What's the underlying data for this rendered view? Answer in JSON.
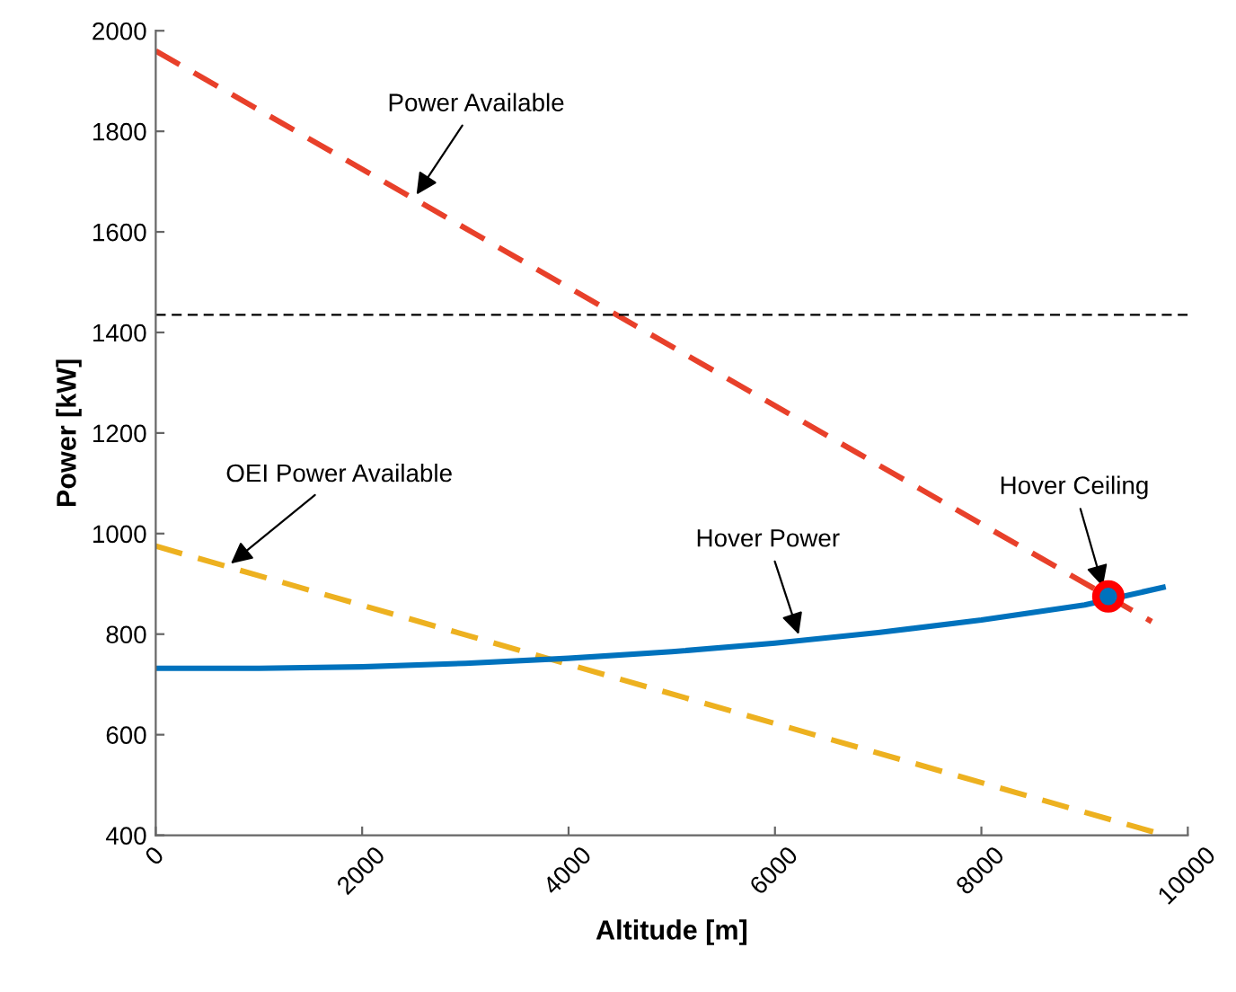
{
  "chart_data": {
    "type": "line",
    "xlabel": "Altitude [m]",
    "ylabel": "Power [kW]",
    "xlim": [
      0,
      10000
    ],
    "ylim": [
      400,
      2000
    ],
    "xticks": [
      0,
      2000,
      4000,
      6000,
      8000,
      10000
    ],
    "yticks": [
      400,
      600,
      800,
      1000,
      1200,
      1400,
      1600,
      1800,
      2000
    ],
    "grid": false,
    "legend": false,
    "series": [
      {
        "color": "#e8402a",
        "line_style": "dashed",
        "x": [
          0,
          9650
        ],
        "values": [
          1960,
          825
        ]
      },
      {
        "color": "#edb120",
        "line_style": "dashed",
        "x": [
          0,
          9780
        ],
        "values": [
          975,
          400
        ]
      },
      {
        "color": "#0072bd",
        "line_style": "solid",
        "x": [
          0,
          1000,
          2000,
          3000,
          4000,
          5000,
          6000,
          7000,
          8000,
          9000,
          9760
        ],
        "values": [
          732,
          732,
          735,
          742,
          752,
          765,
          782,
          803,
          828,
          858,
          893
        ]
      },
      {
        "type": "scatter",
        "marker": "circle",
        "color": "#ff0000",
        "x": [
          9230
        ],
        "values": [
          875
        ]
      }
    ],
    "ref_lines": [
      {
        "axis": "y",
        "value": 1435,
        "color": "#000000",
        "line_style": "dashed"
      }
    ],
    "annotations": [
      {
        "text": "Power Available",
        "x": 2500,
        "y": 1666
      },
      {
        "text": "OEI Power Available",
        "x": 690,
        "y": 934
      },
      {
        "text": "Hover Power",
        "x": 6245,
        "y": 790
      },
      {
        "text": "Hover Ceiling",
        "x": 9190,
        "y": 885
      }
    ]
  }
}
